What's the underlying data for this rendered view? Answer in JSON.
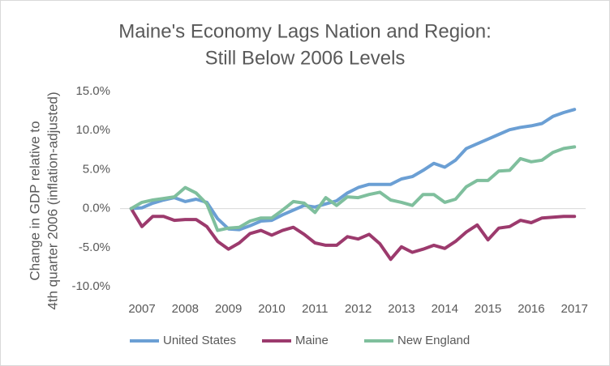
{
  "chart_data": {
    "type": "line",
    "title": [
      "Maine's Economy Lags Nation and Region:",
      "Still Below 2006 Levels"
    ],
    "y_label": [
      "Change in GDP relative to",
      "4th quarter 2006 (inflation-adjusted)"
    ],
    "categories": [
      null,
      "2007",
      null,
      null,
      null,
      "2008",
      null,
      null,
      null,
      "2009",
      null,
      null,
      null,
      "2010",
      null,
      null,
      null,
      "2011",
      null,
      null,
      null,
      "2012",
      null,
      null,
      null,
      "2013",
      null,
      null,
      null,
      "2014",
      null,
      null,
      null,
      "2015",
      null,
      null,
      null,
      "2016",
      null,
      null,
      null,
      "2017"
    ],
    "series": [
      {
        "name": "United States",
        "color": "#6b9fd4",
        "values": [
          0,
          0.1,
          0.7,
          1.1,
          1.4,
          0.9,
          1.2,
          0.8,
          -1.3,
          -2.6,
          -2.7,
          -2.2,
          -1.6,
          -1.5,
          -0.8,
          -0.2,
          0.4,
          0.2,
          0.6,
          1.0,
          2.0,
          2.7,
          3.1,
          3.1,
          3.1,
          3.8,
          4.1,
          4.9,
          5.8,
          5.3,
          6.2,
          7.7,
          8.3,
          8.9,
          9.5,
          10.1,
          10.4,
          10.6,
          10.9,
          11.8,
          12.3,
          12.7
        ]
      },
      {
        "name": "Maine",
        "color": "#9c3a6d",
        "values": [
          0,
          -2.3,
          -1.0,
          -1.0,
          -1.5,
          -1.4,
          -1.4,
          -2.3,
          -4.2,
          -5.2,
          -4.4,
          -3.2,
          -2.8,
          -3.4,
          -2.8,
          -2.4,
          -3.3,
          -4.4,
          -4.7,
          -4.7,
          -3.6,
          -3.9,
          -3.3,
          -4.5,
          -6.5,
          -4.9,
          -5.6,
          -5.2,
          -4.7,
          -5.1,
          -4.2,
          -3.0,
          -2.1,
          -4.0,
          -2.5,
          -2.3,
          -1.5,
          -1.8,
          -1.2,
          -1.1,
          -1.0,
          -1.0
        ]
      },
      {
        "name": "New England",
        "color": "#7fbf9d",
        "values": [
          0,
          0.8,
          1.1,
          1.3,
          1.5,
          2.7,
          2.0,
          0.6,
          -2.8,
          -2.5,
          -2.4,
          -1.6,
          -1.2,
          -1.2,
          -0.2,
          0.9,
          0.7,
          -0.5,
          1.4,
          0.4,
          1.5,
          1.4,
          1.8,
          2.1,
          1.1,
          0.8,
          0.4,
          1.8,
          1.8,
          0.8,
          1.2,
          2.8,
          3.6,
          3.6,
          4.8,
          4.9,
          6.4,
          6.0,
          6.2,
          7.2,
          7.7,
          7.9
        ]
      }
    ],
    "ylim": [
      -10,
      15
    ],
    "yticks": [
      {
        "value": -10,
        "label": "-10.0%"
      },
      {
        "value": -5,
        "label": "-5.0%"
      },
      {
        "value": 0,
        "label": "0.0%"
      },
      {
        "value": 5,
        "label": "5.0%"
      },
      {
        "value": 10,
        "label": "10.0%"
      },
      {
        "value": 15,
        "label": "15.0%"
      }
    ],
    "grid": false,
    "legend": "bottom"
  }
}
